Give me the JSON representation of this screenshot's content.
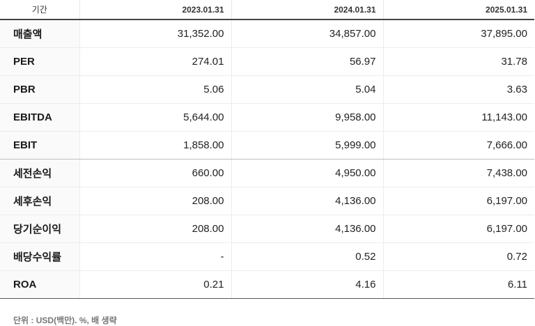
{
  "table": {
    "header": {
      "label": "기간",
      "periods": [
        "2023.01.31",
        "2024.01.31",
        "2025.01.31"
      ]
    },
    "rows": [
      {
        "label": "매출액",
        "values": [
          "31,352.00",
          "34,857.00",
          "37,895.00"
        ]
      },
      {
        "label": "PER",
        "values": [
          "274.01",
          "56.97",
          "31.78"
        ]
      },
      {
        "label": "PBR",
        "values": [
          "5.06",
          "5.04",
          "3.63"
        ]
      },
      {
        "label": "EBITDA",
        "values": [
          "5,644.00",
          "9,958.00",
          "11,143.00"
        ]
      },
      {
        "label": "EBIT",
        "values": [
          "1,858.00",
          "5,999.00",
          "7,666.00"
        ]
      },
      {
        "label": "세전손익",
        "values": [
          "660.00",
          "4,950.00",
          "7,438.00"
        ]
      },
      {
        "label": "세후손익",
        "values": [
          "208.00",
          "4,136.00",
          "6,197.00"
        ]
      },
      {
        "label": "당기순이익",
        "values": [
          "208.00",
          "4,136.00",
          "6,197.00"
        ]
      },
      {
        "label": "배당수익률",
        "values": [
          "-",
          "0.52",
          "0.72"
        ]
      },
      {
        "label": "ROA",
        "values": [
          "0.21",
          "4.16",
          "6.11"
        ]
      }
    ]
  },
  "footnote": "단위 : USD(백만). %, 배 생략"
}
